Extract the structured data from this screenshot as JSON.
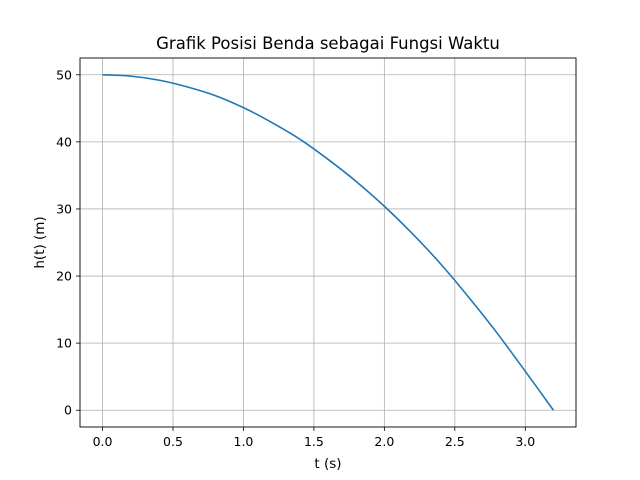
{
  "chart_data": {
    "type": "line",
    "title": "Grafik Posisi Benda sebagai Fungsi Waktu",
    "xlabel": "t (s)",
    "ylabel": "h(t) (m)",
    "xlim": [
      -0.16,
      3.36
    ],
    "ylim": [
      -2.5,
      52.5
    ],
    "xticks": [
      0.0,
      0.5,
      1.0,
      1.5,
      2.0,
      2.5,
      3.0
    ],
    "xtick_labels": [
      "0.0",
      "0.5",
      "1.0",
      "1.5",
      "2.0",
      "2.5",
      "3.0"
    ],
    "yticks": [
      0,
      10,
      20,
      30,
      40,
      50
    ],
    "ytick_labels": [
      "0",
      "10",
      "20",
      "30",
      "40",
      "50"
    ],
    "grid": true,
    "color": "#1f77b4",
    "series": [
      {
        "x": [
          0.0,
          0.2,
          0.4,
          0.6,
          0.8,
          1.0,
          1.2,
          1.4,
          1.6,
          1.8,
          2.0,
          2.2,
          2.4,
          2.6,
          2.8,
          3.0,
          3.2
        ],
        "y": [
          50.0,
          49.8,
          49.2,
          48.2,
          46.9,
          45.1,
          42.9,
          40.4,
          37.4,
          34.1,
          30.4,
          26.3,
          21.8,
          16.8,
          11.5,
          5.8,
          0.0
        ]
      }
    ]
  }
}
